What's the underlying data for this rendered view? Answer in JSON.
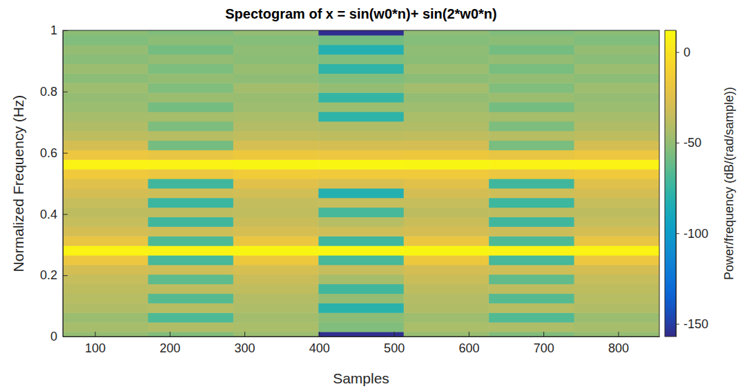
{
  "chart_data": {
    "type": "heatmap",
    "title": "Spectogram of x = sin(w0*n)+ sin(2*w0*n)",
    "x_label": "Samples",
    "y_label": "Normalized Frequency (Hz)",
    "colorbar_label": "Power/frequency (dB/(rad/sample))",
    "x": [
      114,
      228,
      342,
      456,
      570,
      684,
      798
    ],
    "y": [
      0,
      0.03125,
      0.0625,
      0.09375,
      0.125,
      0.15625,
      0.1875,
      0.21875,
      0.25,
      0.28125,
      0.3125,
      0.34375,
      0.375,
      0.40625,
      0.4375,
      0.46875,
      0.5,
      0.53125,
      0.5625,
      0.59375,
      0.625,
      0.65625,
      0.6875,
      0.71875,
      0.75,
      0.78125,
      0.8125,
      0.84375,
      0.875,
      0.90625,
      0.9375,
      0.96875,
      1
    ],
    "cells": [
      [
        -50,
        -45,
        -48,
        -42,
        -40,
        -38,
        -35,
        -30,
        -18,
        8,
        -20,
        -30,
        -35,
        -38,
        -35,
        -30,
        -25,
        -15,
        8,
        -18,
        -30,
        -38,
        -42,
        -45,
        -48,
        -50,
        -47,
        -52,
        -48,
        -53,
        -50,
        -55,
        -52
      ],
      [
        -55,
        -42,
        -68,
        -40,
        -66,
        -38,
        -64,
        -32,
        -70,
        8,
        -68,
        -32,
        -72,
        -38,
        -74,
        -32,
        -72,
        -18,
        8,
        -20,
        -58,
        -40,
        -56,
        -45,
        -58,
        -48,
        -55,
        -50,
        -56,
        -50,
        -58,
        -52,
        -55
      ],
      [
        -48,
        -44,
        -46,
        -43,
        -41,
        -37,
        -34,
        -29,
        -17,
        9,
        -19,
        -29,
        -34,
        -37,
        -36,
        -31,
        -24,
        -14,
        9,
        -17,
        -29,
        -37,
        -41,
        -44,
        -47,
        -49,
        -46,
        -51,
        -49,
        -52,
        -51,
        -54,
        -50
      ],
      [
        -155,
        -55,
        -52,
        -80,
        -50,
        -72,
        -45,
        -35,
        -70,
        10,
        -72,
        -32,
        -40,
        -70,
        -35,
        -82,
        -28,
        -15,
        10,
        -18,
        -30,
        -38,
        -42,
        -78,
        -48,
        -76,
        -50,
        -55,
        -78,
        -55,
        -82,
        -58,
        -155
      ],
      [
        -49,
        -44,
        -47,
        -42,
        -41,
        -38,
        -34,
        -30,
        -17,
        9,
        -19,
        -30,
        -34,
        -38,
        -35,
        -30,
        -24,
        -15,
        9,
        -17,
        -30,
        -37,
        -42,
        -44,
        -47,
        -50,
        -46,
        -52,
        -48,
        -52,
        -51,
        -54,
        -51
      ],
      [
        -55,
        -43,
        -67,
        -40,
        -66,
        -38,
        -63,
        -32,
        -70,
        8,
        -68,
        -33,
        -72,
        -38,
        -73,
        -32,
        -72,
        -18,
        8,
        -20,
        -57,
        -40,
        -56,
        -45,
        -58,
        -48,
        -55,
        -50,
        -57,
        -50,
        -58,
        -52,
        -55
      ],
      [
        -50,
        -45,
        -48,
        -42,
        -40,
        -38,
        -35,
        -30,
        -18,
        8,
        -20,
        -30,
        -35,
        -38,
        -35,
        -30,
        -25,
        -15,
        8,
        -18,
        -30,
        -38,
        -42,
        -45,
        -48,
        -50,
        -47,
        -52,
        -48,
        -53,
        -50,
        -55,
        -52
      ]
    ],
    "xlim": [
      57,
      855
    ],
    "xticks": [
      100,
      200,
      300,
      400,
      500,
      600,
      700,
      800
    ],
    "ylim": [
      0,
      1
    ],
    "yticks": [
      0,
      0.2,
      0.4,
      0.6,
      0.8,
      1
    ],
    "color_range": [
      -157,
      12
    ],
    "color_ticks": [
      -150,
      -100,
      -50,
      0
    ]
  }
}
